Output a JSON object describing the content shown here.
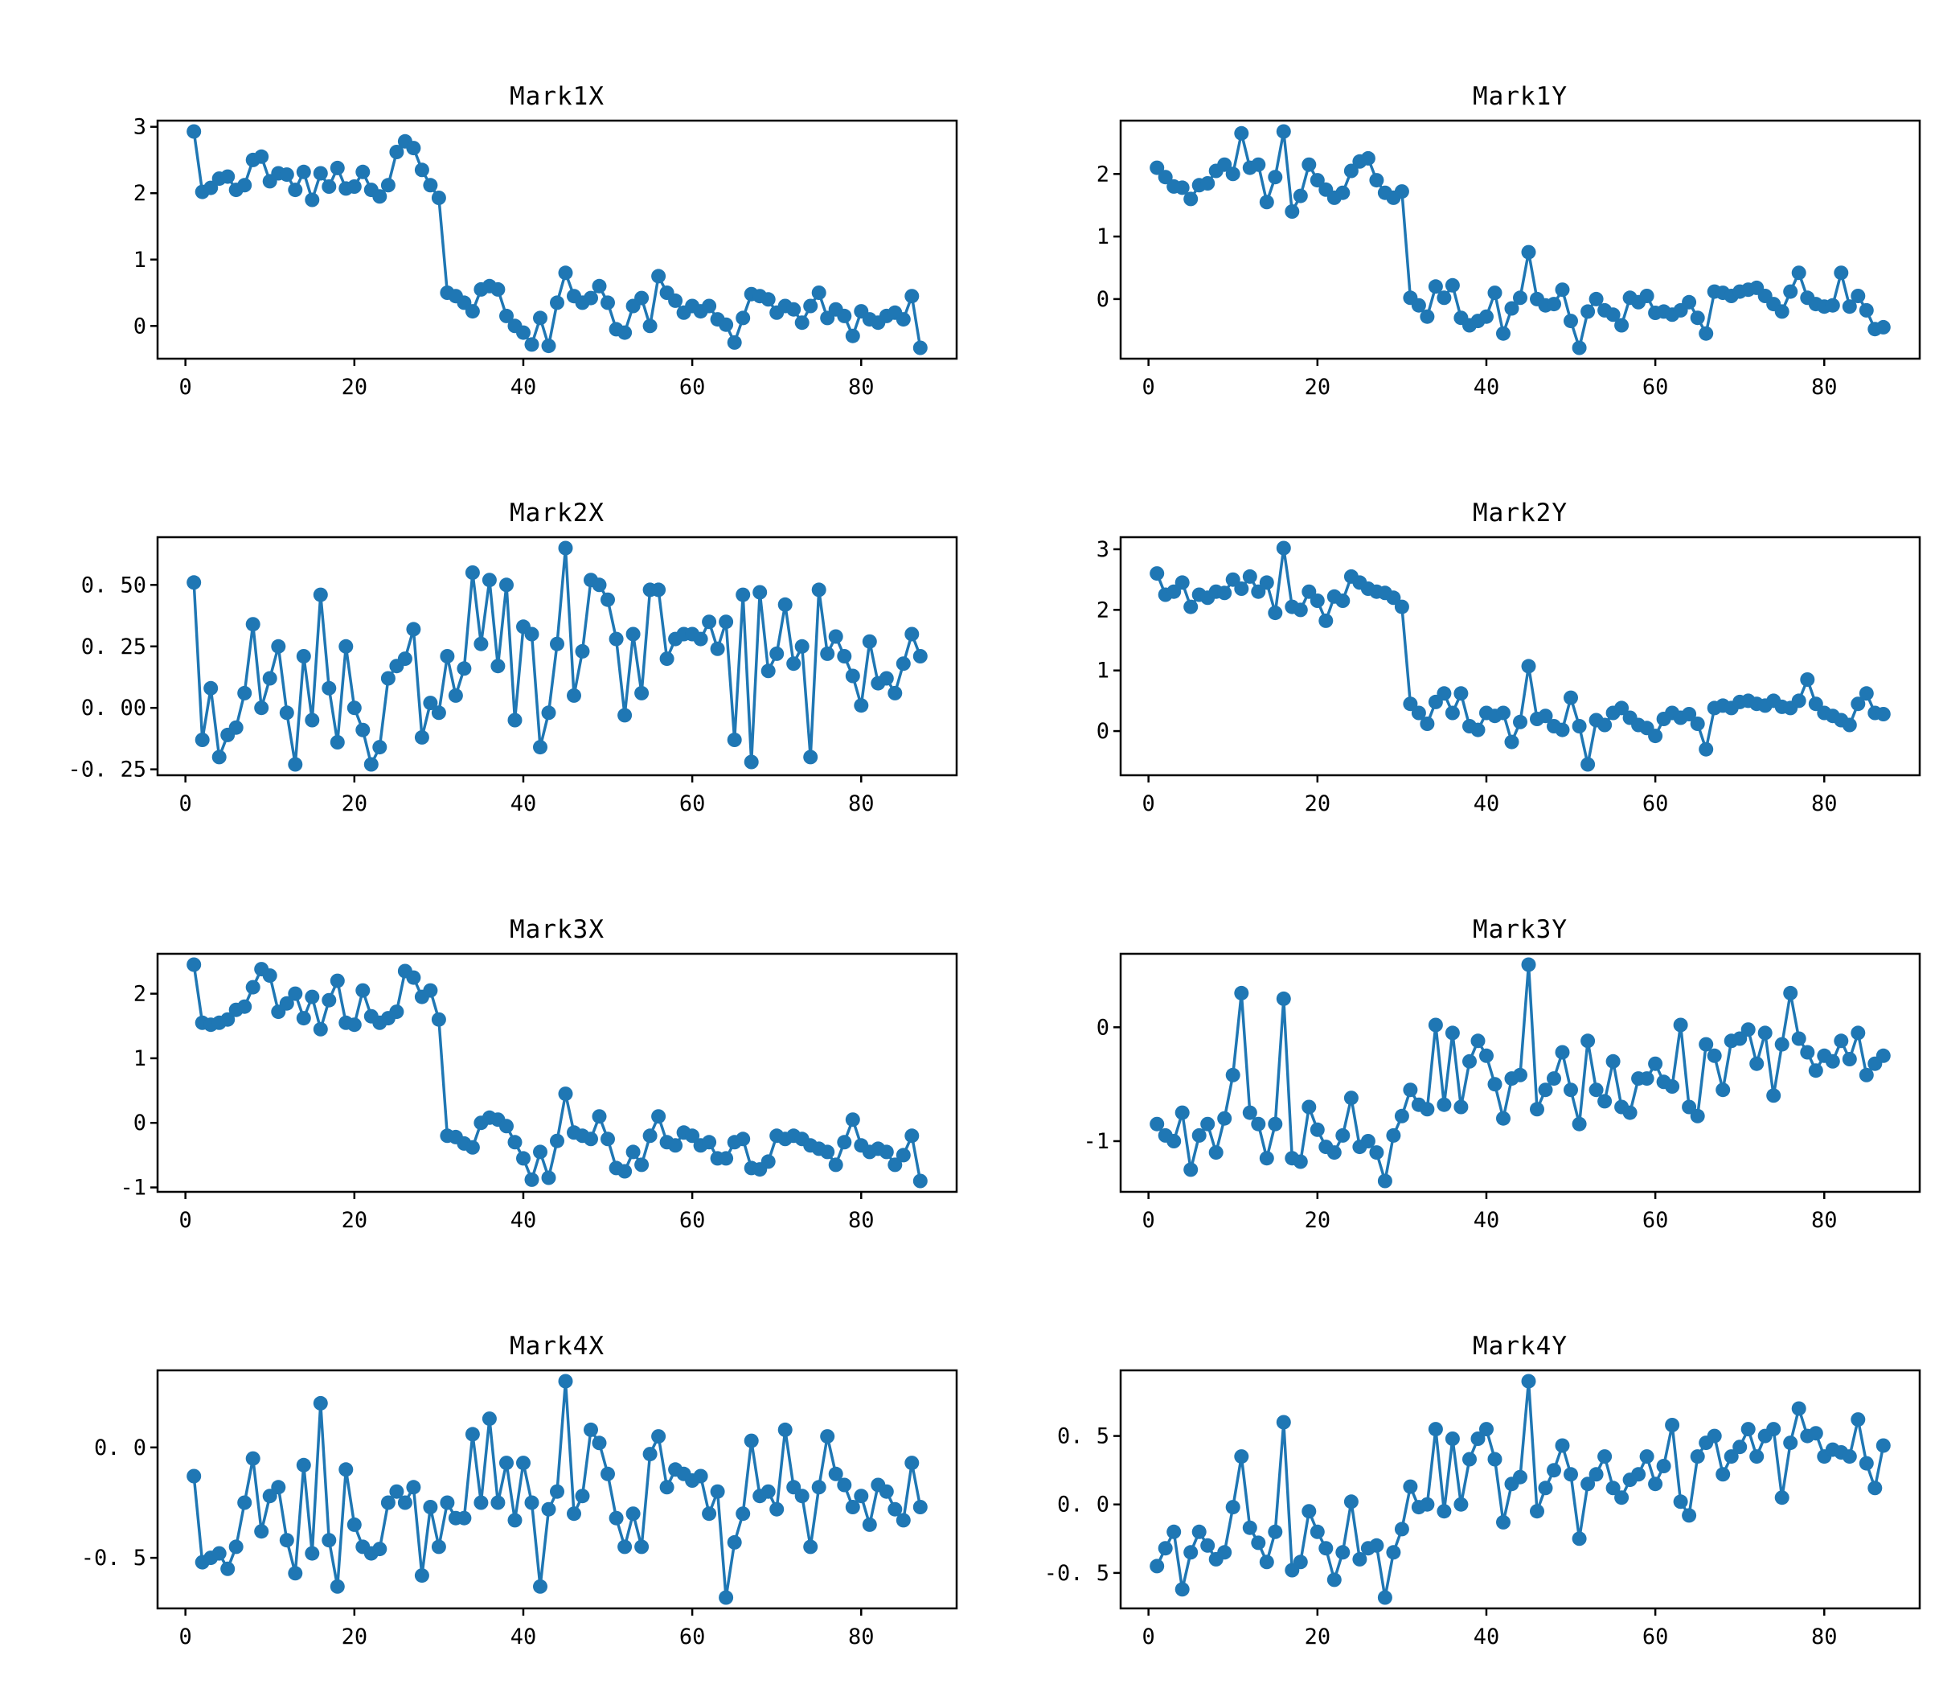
{
  "figure": {
    "background": "#ffffff",
    "series_color": "#1f77b4",
    "axis_color": "#000000"
  },
  "chart_data": [
    {
      "type": "line",
      "title": "Mark1X",
      "x_start": 1,
      "xlim": [
        -3.3,
        91.3
      ],
      "ylim": [
        -0.493,
        3.093
      ],
      "x_ticks": {
        "values": [
          0,
          20,
          40,
          60,
          80
        ],
        "labels": [
          "0",
          "20",
          "40",
          "60",
          "80"
        ]
      },
      "y_ticks": {
        "values": [
          0,
          1,
          2,
          3
        ],
        "labels": [
          "0",
          "1",
          "2",
          "3"
        ]
      },
      "y": [
        2.93,
        2.02,
        2.08,
        2.22,
        2.25,
        2.05,
        2.12,
        2.5,
        2.55,
        2.18,
        2.3,
        2.28,
        2.05,
        2.32,
        1.9,
        2.3,
        2.1,
        2.38,
        2.07,
        2.1,
        2.32,
        2.05,
        1.95,
        2.12,
        2.62,
        2.78,
        2.68,
        2.35,
        2.12,
        1.93,
        0.5,
        0.45,
        0.35,
        0.22,
        0.55,
        0.6,
        0.55,
        0.15,
        0.0,
        -0.1,
        -0.28,
        0.12,
        -0.3,
        0.35,
        0.8,
        0.45,
        0.35,
        0.42,
        0.6,
        0.35,
        -0.05,
        -0.1,
        0.3,
        0.42,
        0.0,
        0.75,
        0.5,
        0.38,
        0.2,
        0.3,
        0.22,
        0.3,
        0.1,
        0.02,
        -0.25,
        0.12,
        0.48,
        0.45,
        0.4,
        0.2,
        0.3,
        0.25,
        0.05,
        0.3,
        0.5,
        0.12,
        0.25,
        0.15,
        -0.15,
        0.22,
        0.1,
        0.05,
        0.15,
        0.2,
        0.1,
        0.45,
        -0.33
      ]
    },
    {
      "type": "line",
      "title": "Mark1Y",
      "x_start": 1,
      "xlim": [
        -3.3,
        91.3
      ],
      "ylim": [
        -0.953,
        2.853
      ],
      "x_ticks": {
        "values": [
          0,
          20,
          40,
          60,
          80
        ],
        "labels": [
          "0",
          "20",
          "40",
          "60",
          "80"
        ]
      },
      "y_ticks": {
        "values": [
          0,
          1,
          2
        ],
        "labels": [
          "0",
          "1",
          "2"
        ]
      },
      "y": [
        2.1,
        1.95,
        1.8,
        1.78,
        1.6,
        1.82,
        1.85,
        2.05,
        2.15,
        2.0,
        2.65,
        2.1,
        2.15,
        1.55,
        1.95,
        2.68,
        1.4,
        1.65,
        2.15,
        1.9,
        1.75,
        1.62,
        1.7,
        2.05,
        2.2,
        2.25,
        1.9,
        1.7,
        1.62,
        1.72,
        0.02,
        -0.1,
        -0.28,
        0.2,
        0.02,
        0.22,
        -0.3,
        -0.42,
        -0.35,
        -0.28,
        0.1,
        -0.55,
        -0.15,
        0.02,
        0.75,
        0.0,
        -0.1,
        -0.08,
        0.15,
        -0.35,
        -0.78,
        -0.2,
        0.0,
        -0.18,
        -0.25,
        -0.42,
        0.02,
        -0.05,
        0.05,
        -0.22,
        -0.2,
        -0.25,
        -0.18,
        -0.05,
        -0.3,
        -0.55,
        0.12,
        0.1,
        0.05,
        0.12,
        0.15,
        0.18,
        0.05,
        -0.08,
        -0.2,
        0.12,
        0.42,
        0.02,
        -0.08,
        -0.12,
        -0.1,
        0.42,
        -0.12,
        0.05,
        -0.18,
        -0.48,
        -0.45
      ]
    },
    {
      "type": "line",
      "title": "Mark2X",
      "x_start": 1,
      "xlim": [
        -3.3,
        91.3
      ],
      "ylim": [
        -0.274,
        0.694
      ],
      "x_ticks": {
        "values": [
          0,
          20,
          40,
          60,
          80
        ],
        "labels": [
          "0",
          "20",
          "40",
          "60",
          "80"
        ]
      },
      "y_ticks": {
        "values": [
          0.5,
          0.25,
          0.0,
          -0.25
        ],
        "labels": [
          "0. 50",
          "0. 25",
          "0. 00",
          "-0. 25"
        ]
      },
      "y": [
        0.51,
        -0.13,
        0.08,
        -0.2,
        -0.11,
        -0.08,
        0.06,
        0.34,
        0.0,
        0.12,
        0.25,
        -0.02,
        -0.23,
        0.21,
        -0.05,
        0.46,
        0.08,
        -0.14,
        0.25,
        0.0,
        -0.09,
        -0.23,
        -0.16,
        0.12,
        0.17,
        0.2,
        0.32,
        -0.12,
        0.02,
        -0.02,
        0.21,
        0.05,
        0.16,
        0.55,
        0.26,
        0.52,
        0.17,
        0.5,
        -0.05,
        0.33,
        0.3,
        -0.16,
        -0.02,
        0.26,
        0.65,
        0.05,
        0.23,
        0.52,
        0.5,
        0.44,
        0.28,
        -0.03,
        0.3,
        0.06,
        0.48,
        0.48,
        0.2,
        0.28,
        0.3,
        0.3,
        0.28,
        0.35,
        0.24,
        0.35,
        -0.13,
        0.46,
        -0.22,
        0.47,
        0.15,
        0.22,
        0.42,
        0.18,
        0.25,
        -0.2,
        0.48,
        0.22,
        0.29,
        0.21,
        0.13,
        0.01,
        0.27,
        0.1,
        0.12,
        0.06,
        0.18,
        0.3,
        0.21
      ]
    },
    {
      "type": "line",
      "title": "Mark2Y",
      "x_start": 1,
      "xlim": [
        -3.3,
        91.3
      ],
      "ylim": [
        -0.729,
        3.199
      ],
      "x_ticks": {
        "values": [
          0,
          20,
          40,
          60,
          80
        ],
        "labels": [
          "0",
          "20",
          "40",
          "60",
          "80"
        ]
      },
      "y_ticks": {
        "values": [
          0,
          1,
          2,
          3
        ],
        "labels": [
          "0",
          "1",
          "2",
          "3"
        ]
      },
      "y": [
        2.6,
        2.25,
        2.3,
        2.45,
        2.05,
        2.25,
        2.2,
        2.3,
        2.28,
        2.5,
        2.35,
        2.55,
        2.3,
        2.45,
        1.95,
        3.02,
        2.05,
        2.0,
        2.3,
        2.15,
        1.82,
        2.22,
        2.15,
        2.55,
        2.45,
        2.35,
        2.3,
        2.28,
        2.2,
        2.05,
        0.45,
        0.3,
        0.12,
        0.48,
        0.62,
        0.3,
        0.62,
        0.08,
        0.02,
        0.3,
        0.25,
        0.3,
        -0.18,
        0.15,
        1.07,
        0.2,
        0.25,
        0.08,
        0.02,
        0.55,
        0.08,
        -0.55,
        0.18,
        0.1,
        0.3,
        0.38,
        0.22,
        0.1,
        0.05,
        -0.08,
        0.2,
        0.3,
        0.22,
        0.28,
        0.12,
        -0.3,
        0.38,
        0.42,
        0.38,
        0.48,
        0.5,
        0.45,
        0.42,
        0.5,
        0.4,
        0.38,
        0.5,
        0.85,
        0.45,
        0.3,
        0.25,
        0.18,
        0.1,
        0.45,
        0.62,
        0.3,
        0.28
      ]
    },
    {
      "type": "line",
      "title": "Mark3X",
      "x_start": 1,
      "xlim": [
        -3.3,
        91.3
      ],
      "ylim": [
        -1.068,
        2.618
      ],
      "x_ticks": {
        "values": [
          0,
          20,
          40,
          60,
          80
        ],
        "labels": [
          "0",
          "20",
          "40",
          "60",
          "80"
        ]
      },
      "y_ticks": {
        "values": [
          -1,
          0,
          1,
          2
        ],
        "labels": [
          "-1",
          "0",
          "1",
          "2"
        ]
      },
      "y": [
        2.45,
        1.55,
        1.52,
        1.55,
        1.6,
        1.75,
        1.8,
        2.1,
        2.38,
        2.28,
        1.72,
        1.85,
        2.0,
        1.62,
        1.95,
        1.45,
        1.9,
        2.2,
        1.55,
        1.52,
        2.05,
        1.65,
        1.55,
        1.62,
        1.72,
        2.35,
        2.25,
        1.95,
        2.05,
        1.6,
        -0.2,
        -0.22,
        -0.32,
        -0.38,
        0.0,
        0.08,
        0.05,
        -0.05,
        -0.3,
        -0.55,
        -0.88,
        -0.45,
        -0.85,
        -0.28,
        0.45,
        -0.15,
        -0.2,
        -0.25,
        0.1,
        -0.25,
        -0.7,
        -0.75,
        -0.45,
        -0.65,
        -0.2,
        0.1,
        -0.3,
        -0.35,
        -0.15,
        -0.2,
        -0.35,
        -0.3,
        -0.55,
        -0.55,
        -0.3,
        -0.25,
        -0.7,
        -0.72,
        -0.6,
        -0.2,
        -0.25,
        -0.2,
        -0.25,
        -0.35,
        -0.4,
        -0.45,
        -0.65,
        -0.3,
        0.05,
        -0.35,
        -0.45,
        -0.4,
        -0.45,
        -0.65,
        -0.5,
        -0.2,
        -0.9
      ]
    },
    {
      "type": "line",
      "title": "Mark3Y",
      "x_start": 1,
      "xlim": [
        -3.3,
        91.3
      ],
      "ylim": [
        -1.445,
        0.645
      ],
      "x_ticks": {
        "values": [
          0,
          20,
          40,
          60,
          80
        ],
        "labels": [
          "0",
          "20",
          "40",
          "60",
          "80"
        ]
      },
      "y_ticks": {
        "values": [
          -1,
          0
        ],
        "labels": [
          "-1",
          "0"
        ]
      },
      "y": [
        -0.85,
        -0.95,
        -1.0,
        -0.75,
        -1.25,
        -0.95,
        -0.85,
        -1.1,
        -0.8,
        -0.42,
        0.3,
        -0.75,
        -0.85,
        -1.15,
        -0.85,
        0.25,
        -1.15,
        -1.18,
        -0.7,
        -0.9,
        -1.05,
        -1.1,
        -0.95,
        -0.62,
        -1.05,
        -1.0,
        -1.1,
        -1.35,
        -0.95,
        -0.78,
        -0.55,
        -0.68,
        -0.72,
        0.02,
        -0.68,
        -0.05,
        -0.7,
        -0.3,
        -0.12,
        -0.25,
        -0.5,
        -0.8,
        -0.45,
        -0.42,
        0.55,
        -0.72,
        -0.55,
        -0.45,
        -0.22,
        -0.55,
        -0.85,
        -0.12,
        -0.55,
        -0.65,
        -0.3,
        -0.7,
        -0.75,
        -0.45,
        -0.45,
        -0.32,
        -0.48,
        -0.52,
        0.02,
        -0.7,
        -0.78,
        -0.15,
        -0.25,
        -0.55,
        -0.12,
        -0.1,
        -0.02,
        -0.32,
        -0.05,
        -0.6,
        -0.15,
        0.3,
        -0.1,
        -0.22,
        -0.38,
        -0.25,
        -0.3,
        -0.12,
        -0.28,
        -0.05,
        -0.42,
        -0.32,
        -0.25
      ]
    },
    {
      "type": "line",
      "title": "Mark4X",
      "x_start": 1,
      "xlim": [
        -3.3,
        91.3
      ],
      "ylim": [
        -0.729,
        0.349
      ],
      "x_ticks": {
        "values": [
          0,
          20,
          40,
          60,
          80
        ],
        "labels": [
          "0",
          "20",
          "40",
          "60",
          "80"
        ]
      },
      "y_ticks": {
        "values": [
          0.0,
          -0.5
        ],
        "labels": [
          "0. 0",
          "-0. 5"
        ]
      },
      "y": [
        -0.13,
        -0.52,
        -0.5,
        -0.48,
        -0.55,
        -0.45,
        -0.25,
        -0.05,
        -0.38,
        -0.22,
        -0.18,
        -0.42,
        -0.57,
        -0.08,
        -0.48,
        0.2,
        -0.42,
        -0.63,
        -0.1,
        -0.35,
        -0.45,
        -0.48,
        -0.46,
        -0.25,
        -0.2,
        -0.25,
        -0.18,
        -0.58,
        -0.27,
        -0.45,
        -0.25,
        -0.32,
        -0.32,
        0.06,
        -0.25,
        0.13,
        -0.25,
        -0.07,
        -0.33,
        -0.07,
        -0.25,
        -0.63,
        -0.28,
        -0.2,
        0.3,
        -0.3,
        -0.22,
        0.08,
        0.02,
        -0.12,
        -0.32,
        -0.45,
        -0.3,
        -0.45,
        -0.03,
        0.05,
        -0.18,
        -0.1,
        -0.12,
        -0.15,
        -0.13,
        -0.3,
        -0.2,
        -0.68,
        -0.43,
        -0.3,
        0.03,
        -0.22,
        -0.2,
        -0.28,
        0.08,
        -0.18,
        -0.22,
        -0.45,
        -0.18,
        0.05,
        -0.12,
        -0.17,
        -0.27,
        -0.22,
        -0.35,
        -0.17,
        -0.2,
        -0.28,
        -0.33,
        -0.07,
        -0.27
      ]
    },
    {
      "type": "line",
      "title": "Mark4Y",
      "x_start": 1,
      "xlim": [
        -3.3,
        91.3
      ],
      "ylim": [
        -0.759,
        0.979
      ],
      "x_ticks": {
        "values": [
          0,
          20,
          40,
          60,
          80
        ],
        "labels": [
          "0",
          "20",
          "40",
          "60",
          "80"
        ]
      },
      "y_ticks": {
        "values": [
          0.5,
          0.0,
          -0.5
        ],
        "labels": [
          "0. 5",
          "0. 0",
          "-0. 5"
        ]
      },
      "y": [
        -0.45,
        -0.32,
        -0.2,
        -0.62,
        -0.35,
        -0.2,
        -0.3,
        -0.4,
        -0.35,
        -0.02,
        0.35,
        -0.17,
        -0.28,
        -0.42,
        -0.2,
        0.6,
        -0.48,
        -0.42,
        -0.05,
        -0.2,
        -0.32,
        -0.55,
        -0.35,
        0.02,
        -0.4,
        -0.32,
        -0.3,
        -0.68,
        -0.35,
        -0.18,
        0.13,
        -0.02,
        0.0,
        0.55,
        -0.05,
        0.48,
        0.0,
        0.33,
        0.48,
        0.55,
        0.33,
        -0.13,
        0.15,
        0.2,
        0.9,
        -0.05,
        0.12,
        0.25,
        0.43,
        0.22,
        -0.25,
        0.15,
        0.22,
        0.35,
        0.12,
        0.05,
        0.18,
        0.22,
        0.35,
        0.15,
        0.28,
        0.58,
        0.02,
        -0.08,
        0.35,
        0.45,
        0.5,
        0.22,
        0.35,
        0.42,
        0.55,
        0.35,
        0.5,
        0.55,
        0.05,
        0.45,
        0.7,
        0.5,
        0.52,
        0.35,
        0.4,
        0.38,
        0.35,
        0.62,
        0.3,
        0.12,
        0.43
      ]
    }
  ]
}
